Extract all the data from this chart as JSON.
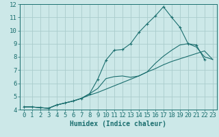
{
  "xlabel": "Humidex (Indice chaleur)",
  "bg_color": "#cce8e8",
  "grid_color": "#aacccc",
  "line_color": "#1a6e6e",
  "xlim": [
    -0.5,
    23.5
  ],
  "ylim": [
    4,
    12
  ],
  "xticks": [
    0,
    1,
    2,
    3,
    4,
    5,
    6,
    7,
    8,
    9,
    10,
    11,
    12,
    13,
    14,
    15,
    16,
    17,
    18,
    19,
    20,
    21,
    22,
    23
  ],
  "yticks": [
    4,
    5,
    6,
    7,
    8,
    9,
    10,
    11,
    12
  ],
  "line1_x": [
    0,
    1,
    2,
    3,
    4,
    5,
    6,
    7,
    8,
    9,
    10,
    11,
    12,
    13,
    14,
    15,
    16,
    17,
    18,
    19,
    20,
    21,
    22,
    23
  ],
  "line1_y": [
    4.2,
    4.2,
    4.15,
    4.1,
    4.35,
    4.5,
    4.65,
    4.85,
    5.1,
    5.3,
    5.55,
    5.8,
    6.05,
    6.3,
    6.55,
    6.85,
    7.1,
    7.4,
    7.65,
    7.85,
    8.05,
    8.25,
    8.45,
    7.8
  ],
  "line2_x": [
    0,
    1,
    2,
    3,
    4,
    5,
    6,
    7,
    8,
    9,
    10,
    11,
    12,
    13,
    14,
    15,
    16,
    17,
    18,
    19,
    20,
    21,
    22
  ],
  "line2_y": [
    4.2,
    4.2,
    4.15,
    4.1,
    4.35,
    4.5,
    4.65,
    4.85,
    5.2,
    6.3,
    7.75,
    8.5,
    8.55,
    9.0,
    9.85,
    10.5,
    11.1,
    11.8,
    11.0,
    10.25,
    9.0,
    8.9,
    7.8
  ],
  "line3_x": [
    0,
    1,
    2,
    3,
    4,
    5,
    6,
    7,
    8,
    9,
    10,
    11,
    12,
    13,
    14,
    15,
    16,
    17,
    18,
    19,
    20,
    21,
    22,
    23
  ],
  "line3_y": [
    4.2,
    4.2,
    4.15,
    4.1,
    4.35,
    4.5,
    4.65,
    4.85,
    5.2,
    5.6,
    6.35,
    6.5,
    6.55,
    6.45,
    6.55,
    6.85,
    7.5,
    8.05,
    8.5,
    8.9,
    9.0,
    8.75,
    8.0,
    7.8
  ],
  "xlabel_fontsize": 7,
  "tick_fontsize": 6.5
}
